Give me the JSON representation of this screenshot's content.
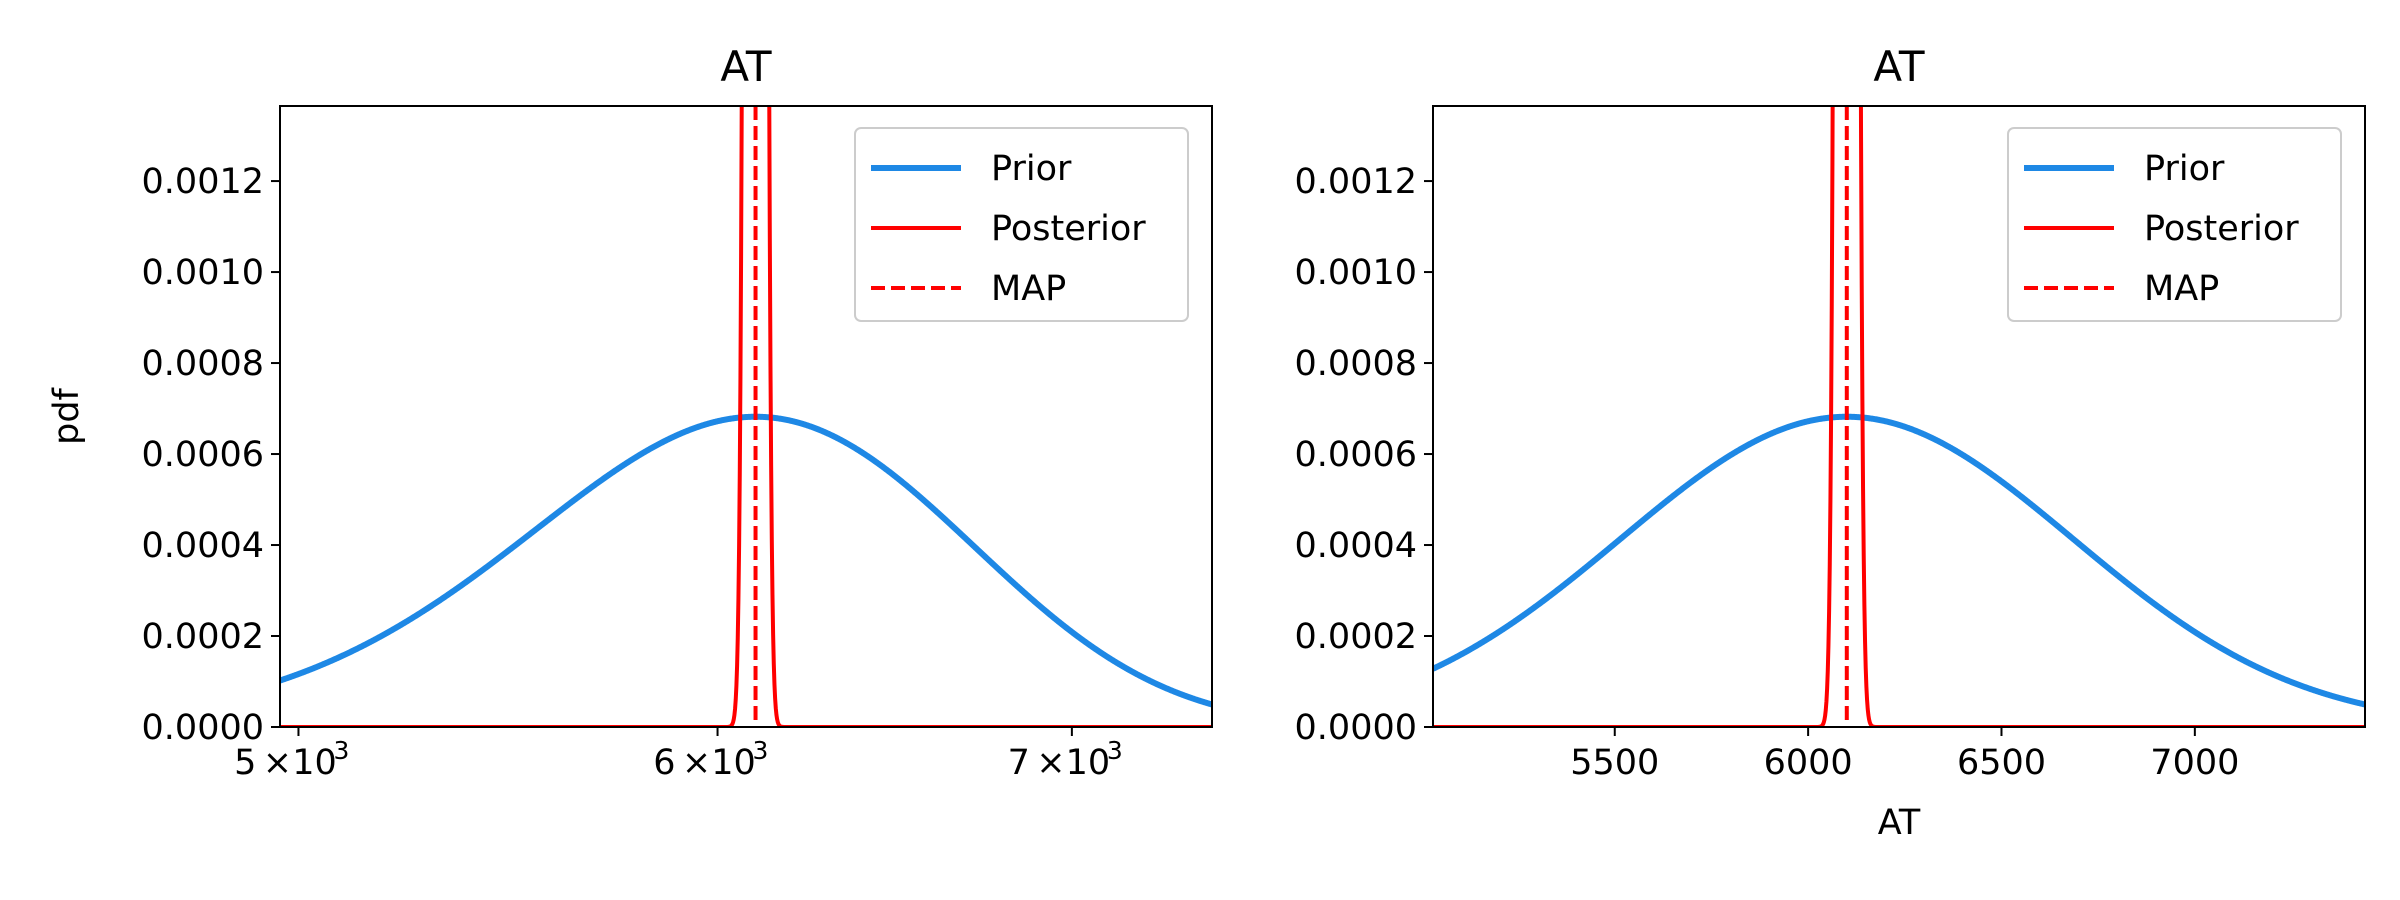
{
  "chart_data": [
    {
      "type": "line",
      "title": "AT",
      "xlabel": "",
      "ylabel": "pdf",
      "xscale": "log",
      "xlim": [
        4960,
        7440
      ],
      "ylim": [
        0,
        0.001365
      ],
      "xticks": [
        {
          "value": 5000,
          "base": "5",
          "exp": "3"
        },
        {
          "value": 6000,
          "base": "6",
          "exp": "3"
        },
        {
          "value": 7000,
          "base": "7",
          "exp": "3"
        }
      ],
      "yticks": [
        "0.0000",
        "0.0002",
        "0.0004",
        "0.0006",
        "0.0008",
        "0.0010",
        "0.0012"
      ],
      "ytick_values": [
        0,
        0.0002,
        0.0004,
        0.0006,
        0.0008,
        0.001,
        0.0012
      ],
      "legend_position": "top-right",
      "series": [
        {
          "name": "Prior",
          "kind": "gaussian",
          "mean": 6100,
          "std": 585,
          "color": "#1e88e5",
          "style": "solid"
        },
        {
          "name": "Posterior",
          "kind": "gaussian",
          "mean": 6100,
          "std": 15,
          "color": "#ff0000",
          "style": "solid"
        },
        {
          "name": "MAP",
          "kind": "vline",
          "x": 6100,
          "color": "#ff0000",
          "style": "dashed"
        }
      ]
    },
    {
      "type": "line",
      "title": "AT",
      "xlabel": "AT",
      "ylabel": "",
      "xscale": "linear",
      "xlim": [
        5030,
        7440
      ],
      "ylim": [
        0,
        0.001365
      ],
      "xticks": [
        {
          "value": 5500,
          "label": "5500"
        },
        {
          "value": 6000,
          "label": "6000"
        },
        {
          "value": 6500,
          "label": "6500"
        },
        {
          "value": 7000,
          "label": "7000"
        }
      ],
      "yticks": [
        "0.0000",
        "0.0002",
        "0.0004",
        "0.0006",
        "0.0008",
        "0.0010",
        "0.0012"
      ],
      "ytick_values": [
        0,
        0.0002,
        0.0004,
        0.0006,
        0.0008,
        0.001,
        0.0012
      ],
      "legend_position": "top-right",
      "series": [
        {
          "name": "Prior",
          "kind": "gaussian",
          "mean": 6100,
          "std": 585,
          "color": "#1e88e5",
          "style": "solid"
        },
        {
          "name": "Posterior",
          "kind": "gaussian",
          "mean": 6100,
          "std": 15,
          "color": "#ff0000",
          "style": "solid"
        },
        {
          "name": "MAP",
          "kind": "vline",
          "x": 6100,
          "color": "#ff0000",
          "style": "dashed"
        }
      ]
    }
  ]
}
